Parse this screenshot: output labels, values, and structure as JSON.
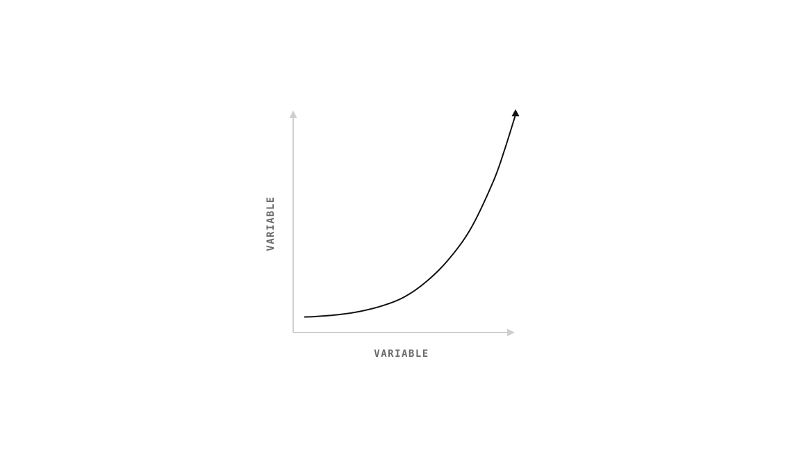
{
  "chart_data": {
    "type": "line",
    "title": "",
    "xlabel": "VARIABLE",
    "ylabel": "VARIABLE",
    "grid": false,
    "legend": "none",
    "xlim": [
      0,
      1
    ],
    "ylim": [
      0,
      1
    ],
    "series": [
      {
        "x": [
          0.05,
          0.1,
          0.2,
          0.3,
          0.4,
          0.5,
          0.6,
          0.7,
          0.8,
          0.9,
          0.95,
          1.0
        ],
        "values": [
          0.07,
          0.072,
          0.08,
          0.095,
          0.12,
          0.16,
          0.23,
          0.33,
          0.47,
          0.68,
          0.82,
          0.98
        ],
        "color": "#111111"
      }
    ],
    "axis_color": "#cfcfcf",
    "label_color": "#6b6b6b"
  }
}
